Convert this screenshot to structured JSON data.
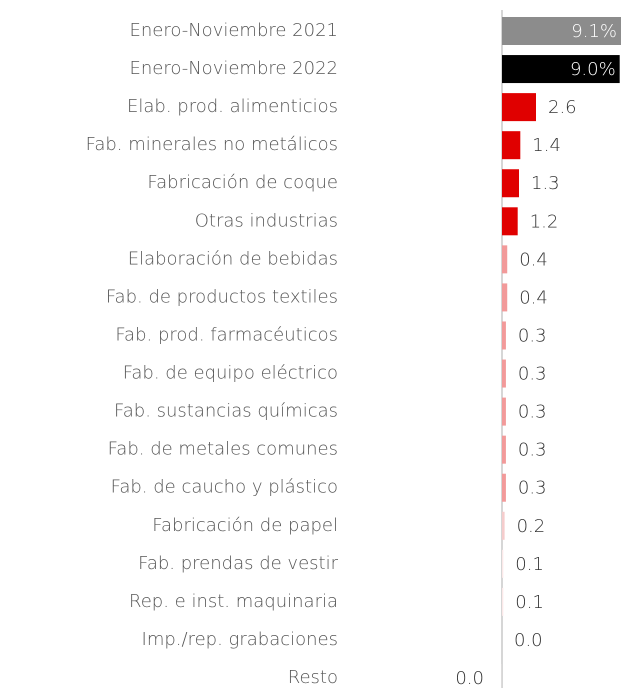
{
  "chart_data": {
    "type": "bar",
    "orientation": "horizontal",
    "categories": [
      "Enero-Noviembre 2021",
      "Enero-Noviembre 2022",
      "Elab. prod. alimenticios",
      "Fab. minerales no metálicos",
      "Fabricación de coque",
      "Otras industrias",
      "Elaboración de bebidas",
      "Fab. de productos textiles",
      "Fab. prod. farmacéuticos",
      "Fab. de equipo eléctrico",
      "Fab. sustancias químicas",
      "Fab. de metales comunes",
      "Fab. de caucho y plástico",
      "Fabricación de papel",
      "Fab. prendas de vestir",
      "Rep. e inst. maquinaria",
      "Imp./rep. grabaciones",
      "Resto"
    ],
    "values": [
      9.1,
      9.0,
      2.6,
      1.4,
      1.3,
      1.2,
      0.4,
      0.4,
      0.3,
      0.3,
      0.3,
      0.3,
      0.3,
      0.2,
      0.1,
      0.1,
      0.0,
      -0.01
    ],
    "value_labels": [
      "9.1%",
      "9.0%",
      "2.6",
      "1.4",
      "1.3",
      "1.2",
      "0.4",
      "0.4",
      "0.3",
      "0.3",
      "0.3",
      "0.3",
      "0.3",
      "0.2",
      "0.1",
      "0.1",
      "0.0",
      "0.0"
    ],
    "colors": [
      "#8c8c8c",
      "#000000",
      "#e00000",
      "#e00000",
      "#e00000",
      "#e00000",
      "#f29a9a",
      "#f29a9a",
      "#f29a9a",
      "#f29a9a",
      "#f29a9a",
      "#f29a9a",
      "#f29a9a",
      "#f5cccc",
      "#fbe8e8",
      "#fbe8e8",
      "#fdf2f2",
      "#fdf2f2"
    ]
  }
}
